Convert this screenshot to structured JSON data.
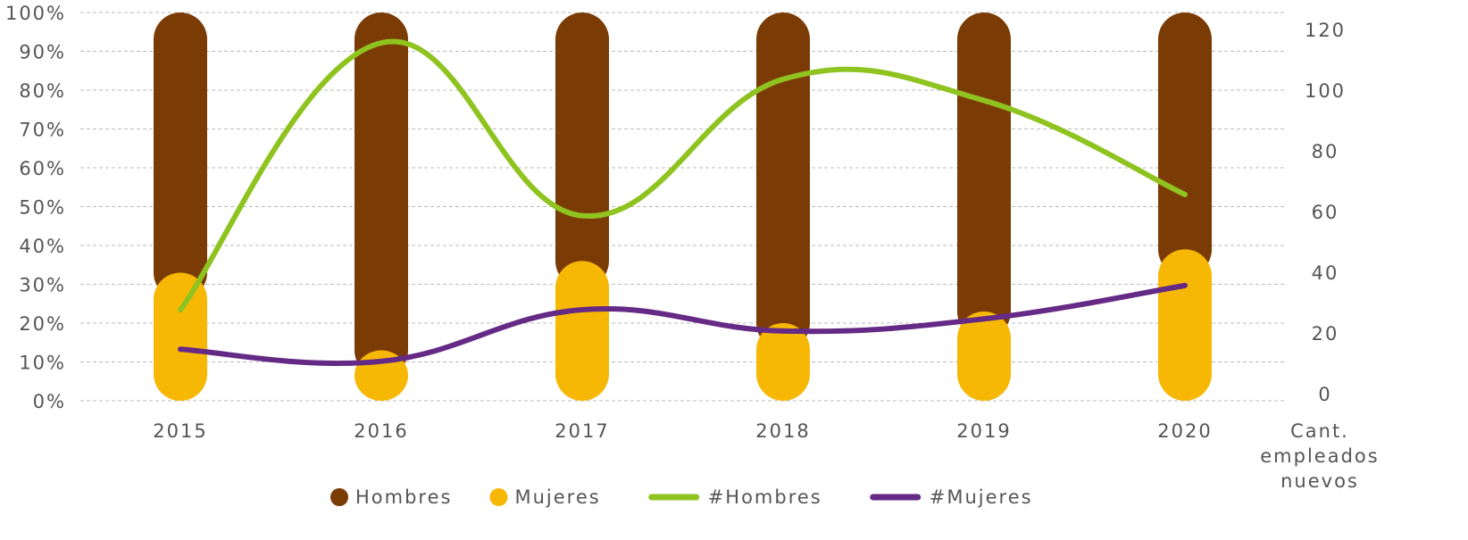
{
  "chart_data": {
    "type": "bar_line",
    "categories": [
      "2015",
      "2016",
      "2017",
      "2018",
      "2019",
      "2020"
    ],
    "series": [
      {
        "name": "Hombres",
        "color": "#7b3b05",
        "kind": "bar",
        "stack": true,
        "values": [
          67,
          87,
          64,
          80,
          77,
          61
        ]
      },
      {
        "name": "Mujeres",
        "color": "#f7b805",
        "kind": "bar",
        "stack": true,
        "values": [
          33,
          13,
          36,
          20,
          23,
          39
        ]
      },
      {
        "name": "#Hombres",
        "color": "#8fc31f",
        "kind": "line",
        "axis": "y2",
        "values": [
          30,
          118,
          61,
          106,
          99,
          68
        ]
      },
      {
        "name": "#Mujeres",
        "color": "#652a85",
        "kind": "line",
        "axis": "y2",
        "values": [
          17,
          13,
          30,
          23,
          27,
          38
        ]
      }
    ],
    "ylim": [
      0,
      100
    ],
    "yticks": [
      {
        "value": 0,
        "label": "0%"
      },
      {
        "value": 10,
        "label": "10%"
      },
      {
        "value": 20,
        "label": "20%"
      },
      {
        "value": 30,
        "label": "30%"
      },
      {
        "value": 40,
        "label": "40%"
      },
      {
        "value": 50,
        "label": "50%"
      },
      {
        "value": 60,
        "label": "60%"
      },
      {
        "value": 70,
        "label": "70%"
      },
      {
        "value": 80,
        "label": "80%"
      },
      {
        "value": 90,
        "label": "90%"
      },
      {
        "value": 100,
        "label": "100%"
      }
    ],
    "y2lim": [
      0,
      128
    ],
    "y2ticks": [
      0,
      20,
      40,
      60,
      80,
      100,
      120
    ],
    "y2label": [
      "Cant.",
      "empleados",
      "nuevos"
    ],
    "grid": true,
    "legend": "bottom"
  }
}
